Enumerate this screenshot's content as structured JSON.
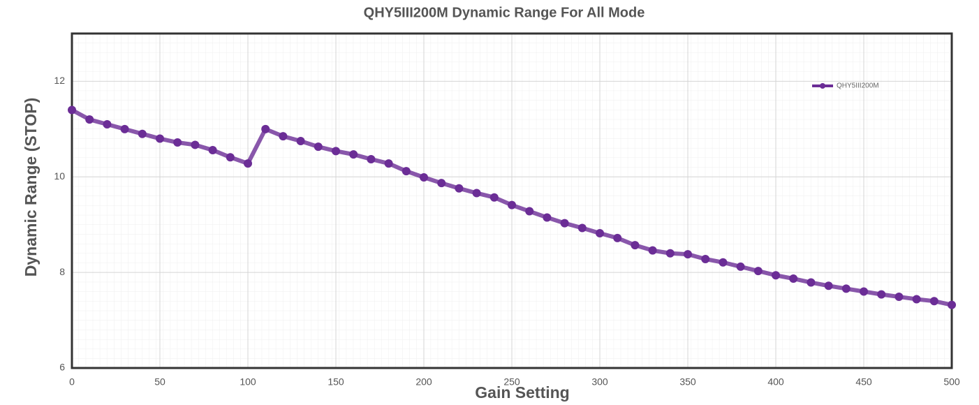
{
  "chart_data": {
    "type": "line",
    "title": "QHY5III200M Dynamic Range For All Mode",
    "x_label": "Gain Setting",
    "y_label": "Dynamic Range (STOP)",
    "x": [
      0,
      10,
      20,
      30,
      40,
      50,
      60,
      70,
      80,
      90,
      100,
      110,
      120,
      130,
      140,
      150,
      160,
      170,
      180,
      190,
      200,
      210,
      220,
      230,
      240,
      250,
      260,
      270,
      280,
      290,
      300,
      310,
      320,
      330,
      340,
      350,
      360,
      370,
      380,
      390,
      400,
      410,
      420,
      430,
      440,
      450,
      460,
      470,
      480,
      490,
      500
    ],
    "series": [
      {
        "name": "QHY5III200M",
        "color": "#6b2d96",
        "values": [
          11.4,
          11.2,
          11.1,
          11.0,
          10.9,
          10.8,
          10.72,
          10.67,
          10.56,
          10.41,
          10.28,
          11.0,
          10.85,
          10.75,
          10.63,
          10.54,
          10.47,
          10.37,
          10.28,
          10.12,
          9.99,
          9.87,
          9.76,
          9.66,
          9.57,
          9.41,
          9.28,
          9.15,
          9.03,
          8.93,
          8.82,
          8.72,
          8.57,
          8.46,
          8.4,
          8.38,
          8.28,
          8.21,
          8.12,
          8.03,
          7.94,
          7.87,
          7.79,
          7.72,
          7.66,
          7.6,
          7.54,
          7.49,
          7.44,
          7.4,
          7.32
        ]
      }
    ],
    "xlim": [
      0,
      500
    ],
    "ylim": [
      6,
      13
    ],
    "xticks": [
      0,
      50,
      100,
      150,
      200,
      250,
      300,
      350,
      400,
      450,
      500
    ],
    "yticks": [
      6,
      8,
      10,
      12
    ],
    "grid": true,
    "legend": "upper right"
  }
}
